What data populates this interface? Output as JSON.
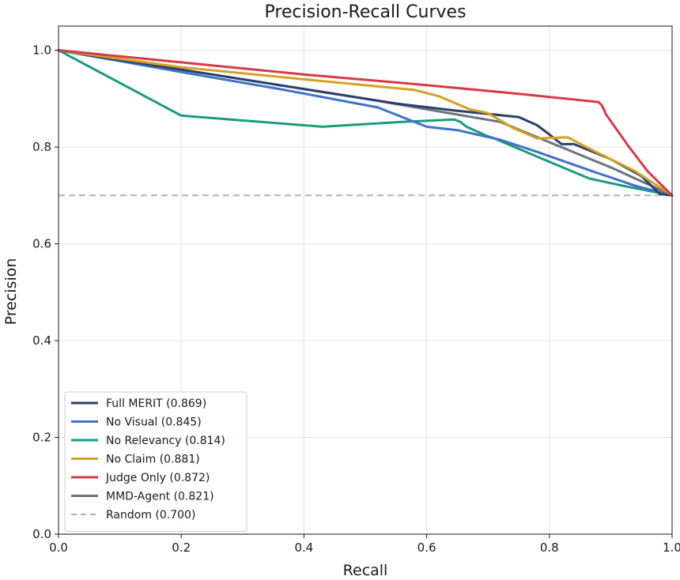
{
  "chart_data": {
    "type": "line",
    "title": "Precision-Recall Curves",
    "xlabel": "Recall",
    "ylabel": "Precision",
    "xlim": [
      0.0,
      1.0
    ],
    "ylim": [
      0.0,
      1.05
    ],
    "xticks": [
      "0.0",
      "0.2",
      "0.4",
      "0.6",
      "0.8",
      "1.0"
    ],
    "yticks": [
      "0.0",
      "0.2",
      "0.4",
      "0.6",
      "0.8",
      "1.0"
    ],
    "grid": true,
    "legend_position": "lower-left",
    "series": [
      {
        "name": "Full MERIT (0.869)",
        "color": "#2b3f6b",
        "dash": "solid",
        "points": [
          [
            0.0,
            1.0
          ],
          [
            0.2,
            0.96
          ],
          [
            0.4,
            0.92
          ],
          [
            0.55,
            0.89
          ],
          [
            0.65,
            0.875
          ],
          [
            0.75,
            0.862
          ],
          [
            0.78,
            0.845
          ],
          [
            0.8,
            0.826
          ],
          [
            0.82,
            0.806
          ],
          [
            0.84,
            0.806
          ],
          [
            0.9,
            0.775
          ],
          [
            0.95,
            0.74
          ],
          [
            0.98,
            0.703
          ],
          [
            1.0,
            0.7
          ]
        ]
      },
      {
        "name": "No Visual (0.845)",
        "color": "#3e73c8",
        "dash": "solid",
        "points": [
          [
            0.0,
            1.0
          ],
          [
            0.2,
            0.955
          ],
          [
            0.36,
            0.92
          ],
          [
            0.52,
            0.882
          ],
          [
            0.56,
            0.862
          ],
          [
            0.6,
            0.842
          ],
          [
            0.65,
            0.835
          ],
          [
            0.72,
            0.815
          ],
          [
            0.78,
            0.79
          ],
          [
            0.87,
            0.75
          ],
          [
            0.94,
            0.72
          ],
          [
            1.0,
            0.7
          ]
        ]
      },
      {
        "name": "No Relevancy (0.814)",
        "color": "#1a9c7f",
        "dash": "solid",
        "points": [
          [
            0.0,
            1.0
          ],
          [
            0.2,
            0.865
          ],
          [
            0.43,
            0.842
          ],
          [
            0.56,
            0.852
          ],
          [
            0.645,
            0.857
          ],
          [
            0.655,
            0.852
          ],
          [
            0.665,
            0.842
          ],
          [
            0.7,
            0.822
          ],
          [
            0.71,
            0.818
          ],
          [
            0.78,
            0.78
          ],
          [
            0.865,
            0.735
          ],
          [
            0.92,
            0.72
          ],
          [
            1.0,
            0.7
          ]
        ]
      },
      {
        "name": "No Claim (0.881)",
        "color": "#d4a122",
        "dash": "solid",
        "points": [
          [
            0.0,
            1.0
          ],
          [
            0.2,
            0.965
          ],
          [
            0.4,
            0.94
          ],
          [
            0.58,
            0.918
          ],
          [
            0.62,
            0.905
          ],
          [
            0.67,
            0.878
          ],
          [
            0.7,
            0.87
          ],
          [
            0.74,
            0.84
          ],
          [
            0.78,
            0.818
          ],
          [
            0.83,
            0.82
          ],
          [
            0.86,
            0.8
          ],
          [
            0.94,
            0.75
          ],
          [
            1.0,
            0.7
          ]
        ]
      },
      {
        "name": "Judge Only (0.872)",
        "color": "#d63a47",
        "dash": "solid",
        "points": [
          [
            0.0,
            1.0
          ],
          [
            0.2,
            0.975
          ],
          [
            0.4,
            0.95
          ],
          [
            0.6,
            0.928
          ],
          [
            0.75,
            0.91
          ],
          [
            0.88,
            0.893
          ],
          [
            0.885,
            0.887
          ],
          [
            0.89,
            0.875
          ],
          [
            0.892,
            0.868
          ],
          [
            0.93,
            0.8
          ],
          [
            0.96,
            0.75
          ],
          [
            1.0,
            0.7
          ]
        ]
      },
      {
        "name": "MMD-Agent (0.821)",
        "color": "#6b737f",
        "dash": "solid",
        "points": [
          [
            0.0,
            1.0
          ],
          [
            0.25,
            0.95
          ],
          [
            0.5,
            0.9
          ],
          [
            0.72,
            0.852
          ],
          [
            0.8,
            0.81
          ],
          [
            0.9,
            0.758
          ],
          [
            1.0,
            0.7
          ]
        ]
      },
      {
        "name": "Random (0.700)",
        "color": "#b4b4b4",
        "dash": "dashed",
        "points": [
          [
            0.0,
            0.7
          ],
          [
            1.0,
            0.7
          ]
        ]
      }
    ]
  }
}
